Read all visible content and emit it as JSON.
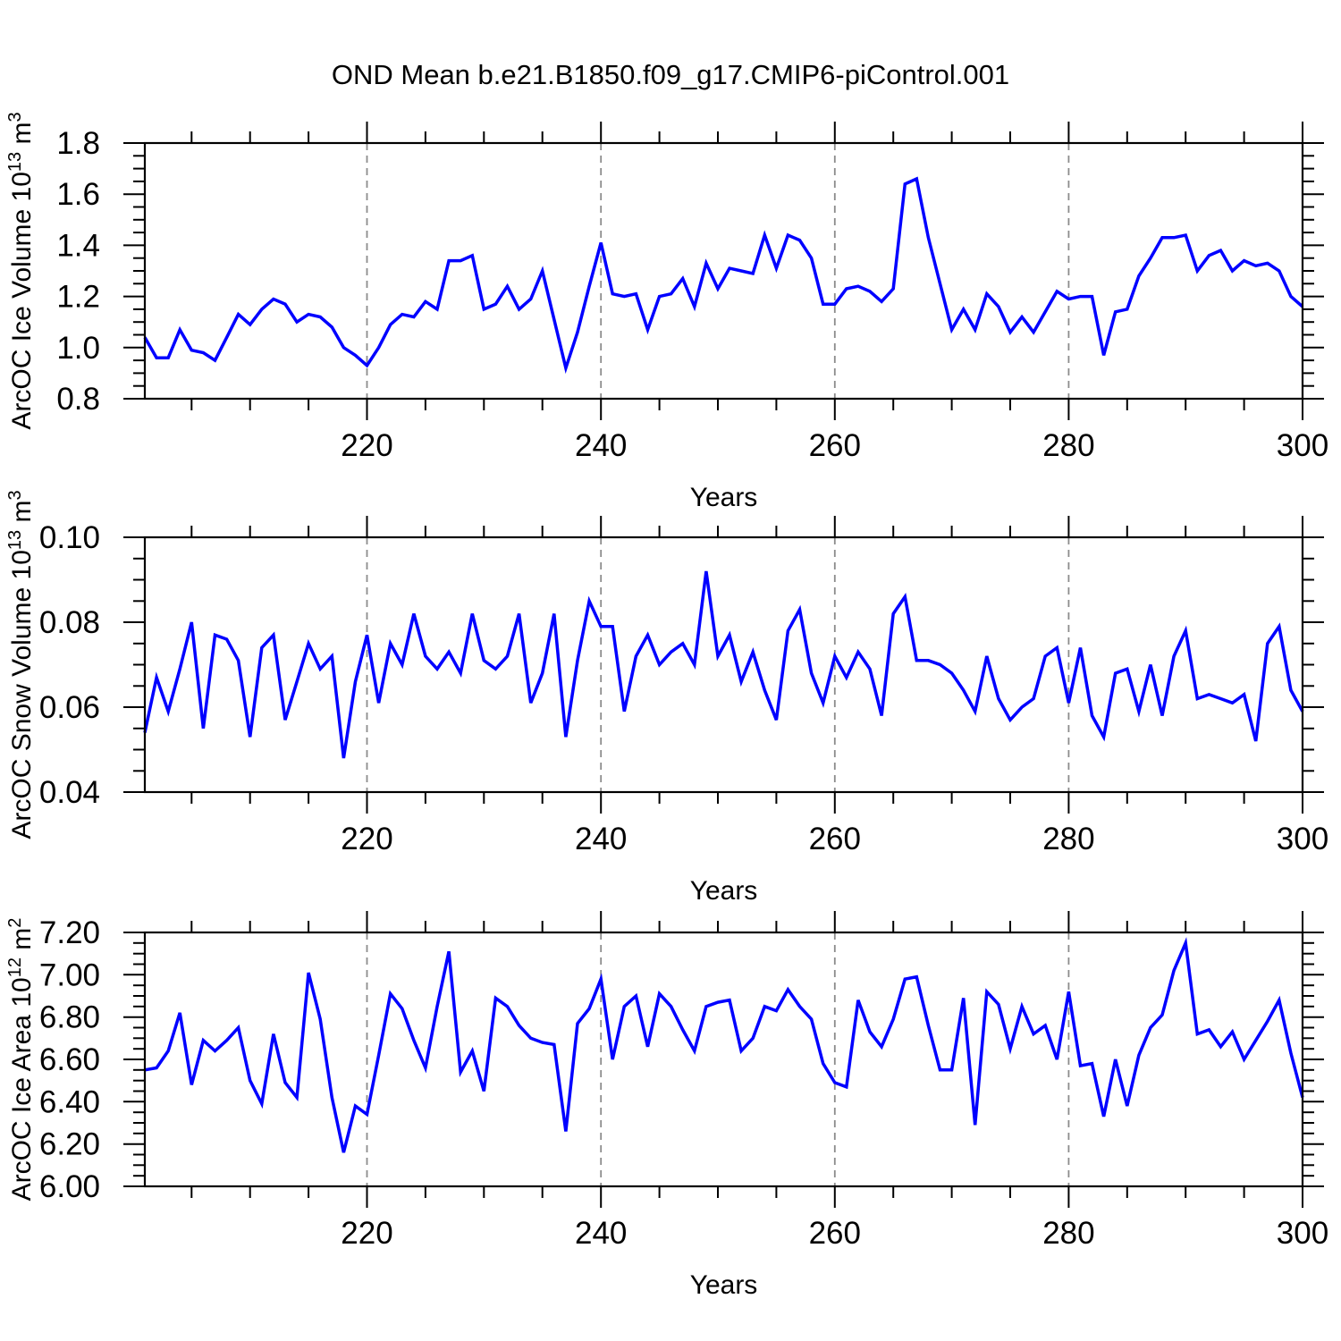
{
  "title": "OND Mean b.e21.B1850.f09_g17.CMIP6-piControl.001",
  "style": {
    "line_color": "#0000ff",
    "grid_color": "#8c8c8c",
    "frame_color": "#000000",
    "background": "#ffffff"
  },
  "chart_data": [
    {
      "id": "arcoc-ice-volume",
      "type": "line",
      "xlabel": "Years",
      "ylabel": "ArcOC Ice Volume 10^13 m^3",
      "ylabel_segments": [
        {
          "t": "ArcOC Ice Volume 10",
          "sup": false
        },
        {
          "t": "13",
          "sup": true
        },
        {
          "t": " m",
          "sup": false
        },
        {
          "t": "3",
          "sup": true
        }
      ],
      "x_range": [
        201,
        300
      ],
      "x_step": 1,
      "xticks": [
        220,
        240,
        260,
        280,
        300
      ],
      "xtick_labels": [
        "220",
        "240",
        "260",
        "280",
        "300"
      ],
      "x_minor_step": 5,
      "grid_x": [
        220,
        240,
        260,
        280
      ],
      "ylim": [
        0.8,
        1.8
      ],
      "yticks": [
        0.8,
        1.0,
        1.2,
        1.4,
        1.6,
        1.8
      ],
      "ytick_labels": [
        "0.8",
        "1.0",
        "1.2",
        "1.4",
        "1.6",
        "1.8"
      ],
      "y_minor_step": 0.05,
      "grid": "x-dashed-only",
      "legend": "none",
      "values": [
        1.04,
        0.96,
        0.96,
        1.07,
        0.99,
        0.98,
        0.95,
        1.04,
        1.13,
        1.09,
        1.15,
        1.19,
        1.17,
        1.1,
        1.13,
        1.12,
        1.08,
        1.0,
        0.97,
        0.93,
        1.0,
        1.09,
        1.13,
        1.12,
        1.18,
        1.15,
        1.34,
        1.34,
        1.36,
        1.15,
        1.17,
        1.24,
        1.15,
        1.19,
        1.3,
        1.11,
        0.92,
        1.06,
        1.24,
        1.41,
        1.21,
        1.2,
        1.21,
        1.07,
        1.2,
        1.21,
        1.27,
        1.16,
        1.33,
        1.23,
        1.31,
        1.3,
        1.29,
        1.44,
        1.31,
        1.44,
        1.42,
        1.35,
        1.17,
        1.17,
        1.23,
        1.24,
        1.22,
        1.18,
        1.23,
        1.64,
        1.66,
        1.43,
        1.25,
        1.07,
        1.15,
        1.07,
        1.21,
        1.16,
        1.06,
        1.12,
        1.06,
        1.14,
        1.22,
        1.19,
        1.2,
        1.2,
        0.97,
        1.14,
        1.15,
        1.28,
        1.35,
        1.43,
        1.43,
        1.44,
        1.3,
        1.36,
        1.38,
        1.3,
        1.34,
        1.32,
        1.33,
        1.3,
        1.2,
        1.16
      ]
    },
    {
      "id": "arcoc-snow-volume",
      "type": "line",
      "xlabel": "Years",
      "ylabel": "ArcOC Snow Volume 10^13 m^3",
      "ylabel_segments": [
        {
          "t": "ArcOC Snow Volume 10",
          "sup": false
        },
        {
          "t": "13",
          "sup": true
        },
        {
          "t": " m",
          "sup": false
        },
        {
          "t": "3",
          "sup": true
        }
      ],
      "x_range": [
        201,
        300
      ],
      "x_step": 1,
      "xticks": [
        220,
        240,
        260,
        280,
        300
      ],
      "xtick_labels": [
        "220",
        "240",
        "260",
        "280",
        "300"
      ],
      "x_minor_step": 5,
      "grid_x": [
        220,
        240,
        260,
        280
      ],
      "ylim": [
        0.04,
        0.1
      ],
      "yticks": [
        0.04,
        0.06,
        0.08,
        0.1
      ],
      "ytick_labels": [
        "0.04",
        "0.06",
        "0.08",
        "0.10"
      ],
      "y_minor_step": 0.005,
      "grid": "x-dashed-only",
      "legend": "none",
      "values": [
        0.054,
        0.067,
        0.059,
        0.069,
        0.08,
        0.055,
        0.077,
        0.076,
        0.071,
        0.053,
        0.074,
        0.077,
        0.057,
        0.066,
        0.075,
        0.069,
        0.072,
        0.048,
        0.066,
        0.077,
        0.061,
        0.075,
        0.07,
        0.082,
        0.072,
        0.069,
        0.073,
        0.068,
        0.082,
        0.071,
        0.069,
        0.072,
        0.082,
        0.061,
        0.068,
        0.082,
        0.053,
        0.071,
        0.085,
        0.079,
        0.079,
        0.059,
        0.072,
        0.077,
        0.07,
        0.073,
        0.075,
        0.07,
        0.092,
        0.072,
        0.077,
        0.066,
        0.073,
        0.064,
        0.057,
        0.078,
        0.083,
        0.068,
        0.061,
        0.072,
        0.067,
        0.073,
        0.069,
        0.058,
        0.082,
        0.086,
        0.071,
        0.071,
        0.07,
        0.068,
        0.064,
        0.059,
        0.072,
        0.062,
        0.057,
        0.06,
        0.062,
        0.072,
        0.074,
        0.061,
        0.074,
        0.058,
        0.053,
        0.068,
        0.069,
        0.059,
        0.07,
        0.058,
        0.072,
        0.078,
        0.062,
        0.063,
        0.062,
        0.061,
        0.063,
        0.052,
        0.075,
        0.079,
        0.064,
        0.059
      ]
    },
    {
      "id": "arcoc-ice-area",
      "type": "line",
      "xlabel": "Years",
      "ylabel": "ArcOC Ice Area 10^12 m^2",
      "ylabel_segments": [
        {
          "t": "ArcOC Ice Area 10",
          "sup": false
        },
        {
          "t": "12",
          "sup": true
        },
        {
          "t": " m",
          "sup": false
        },
        {
          "t": "2",
          "sup": true
        }
      ],
      "x_range": [
        201,
        300
      ],
      "x_step": 1,
      "xticks": [
        220,
        240,
        260,
        280,
        300
      ],
      "xtick_labels": [
        "220",
        "240",
        "260",
        "280",
        "300"
      ],
      "x_minor_step": 5,
      "grid_x": [
        220,
        240,
        260,
        280
      ],
      "ylim": [
        6.0,
        7.2
      ],
      "yticks": [
        6.0,
        6.2,
        6.4,
        6.6,
        6.8,
        7.0,
        7.2
      ],
      "ytick_labels": [
        "6.00",
        "6.20",
        "6.40",
        "6.60",
        "6.80",
        "7.00",
        "7.20"
      ],
      "y_minor_step": 0.05,
      "grid": "x-dashed-only",
      "legend": "none",
      "values": [
        6.55,
        6.56,
        6.64,
        6.82,
        6.48,
        6.69,
        6.64,
        6.69,
        6.75,
        6.5,
        6.39,
        6.72,
        6.49,
        6.42,
        7.01,
        6.79,
        6.42,
        6.16,
        6.38,
        6.34,
        6.62,
        6.91,
        6.84,
        6.69,
        6.56,
        6.85,
        7.11,
        6.54,
        6.64,
        6.45,
        6.89,
        6.85,
        6.76,
        6.7,
        6.68,
        6.67,
        6.26,
        6.77,
        6.84,
        6.98,
        6.6,
        6.85,
        6.9,
        6.66,
        6.91,
        6.85,
        6.74,
        6.64,
        6.85,
        6.87,
        6.88,
        6.64,
        6.7,
        6.85,
        6.83,
        6.93,
        6.85,
        6.79,
        6.58,
        6.49,
        6.47,
        6.88,
        6.73,
        6.66,
        6.79,
        6.98,
        6.99,
        6.76,
        6.55,
        6.55,
        6.89,
        6.29,
        6.92,
        6.86,
        6.65,
        6.85,
        6.72,
        6.76,
        6.6,
        6.92,
        6.57,
        6.58,
        6.33,
        6.6,
        6.38,
        6.62,
        6.75,
        6.81,
        7.02,
        7.15,
        6.72,
        6.74,
        6.66,
        6.73,
        6.6,
        6.69,
        6.78,
        6.88,
        6.63,
        6.42
      ]
    }
  ]
}
